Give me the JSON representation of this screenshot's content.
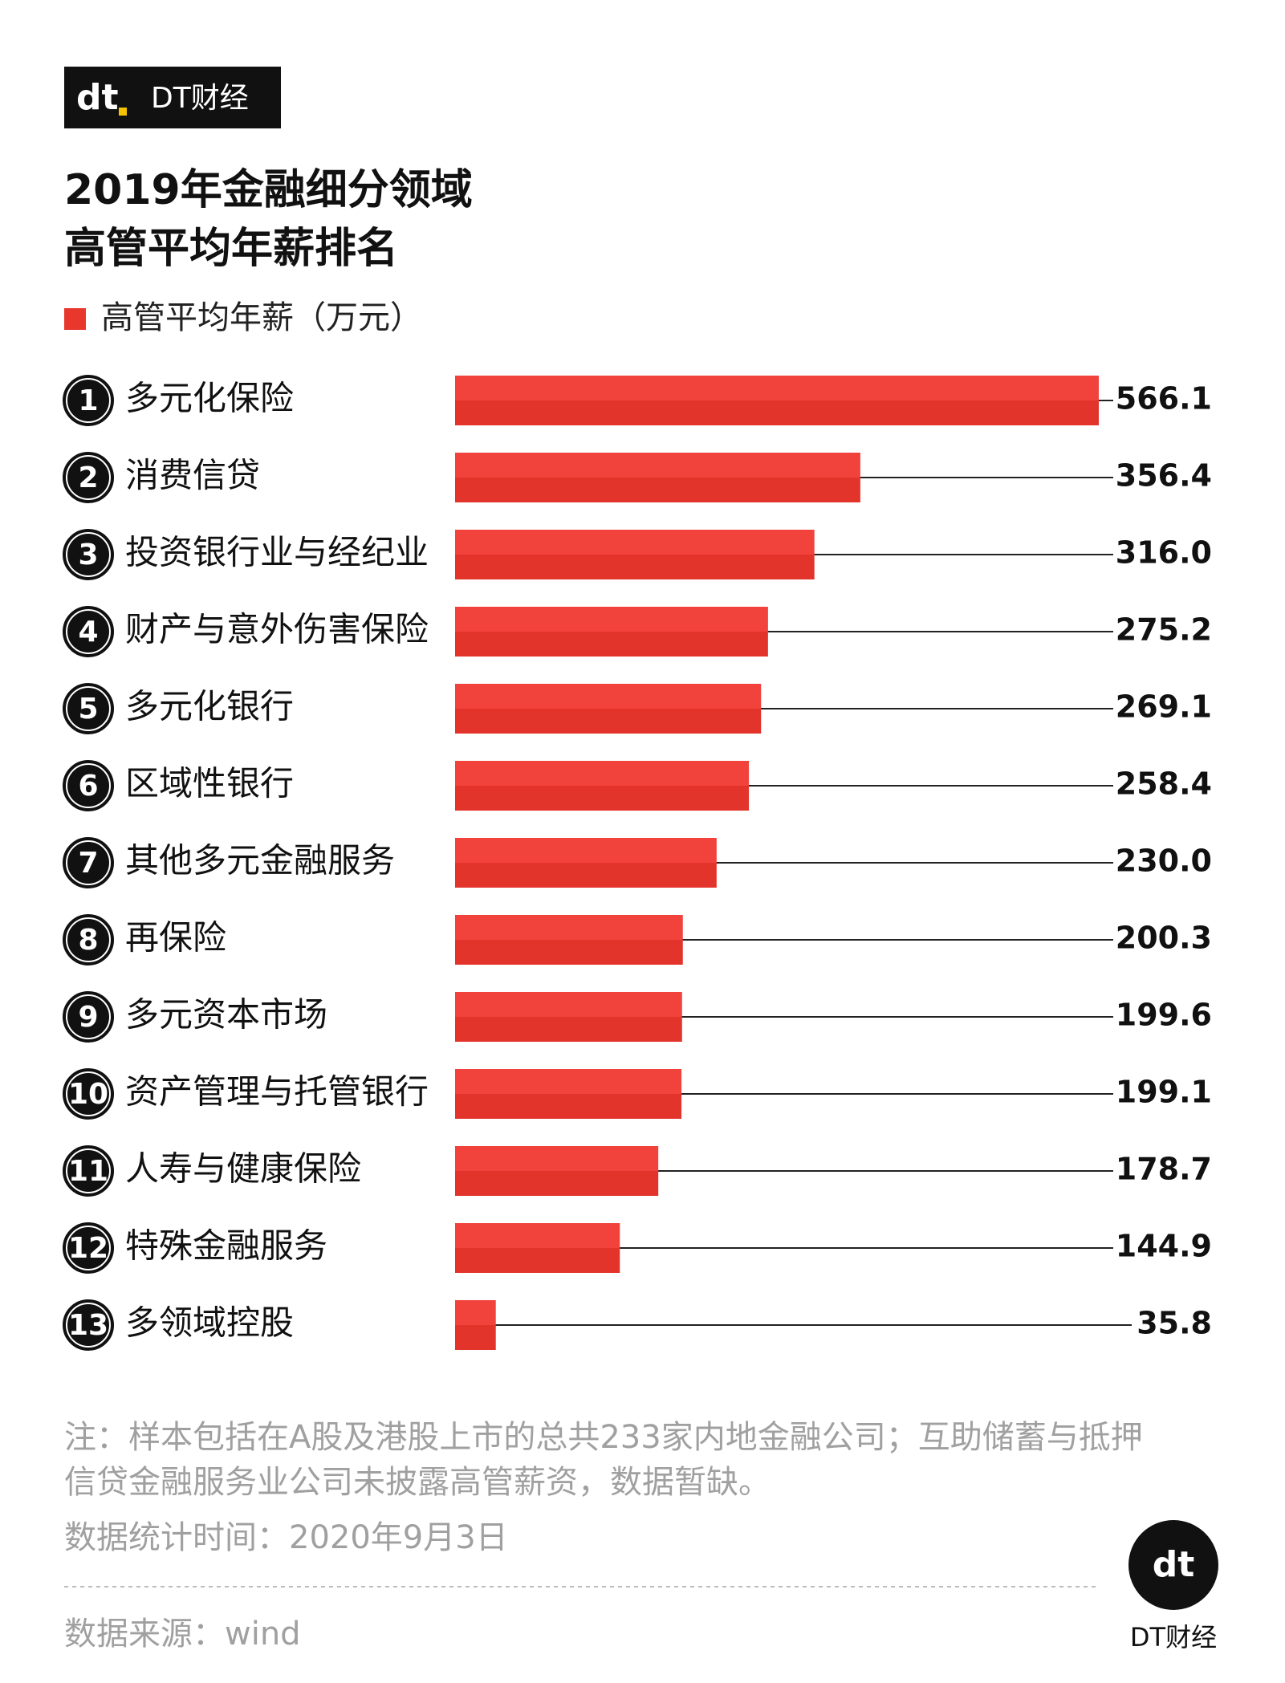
{
  "brand": "DT财经",
  "chart_data": {
    "type": "bar",
    "orientation": "horizontal",
    "title": [
      "2019年金融细分领域",
      "高管平均年薪排名"
    ],
    "ranks": [
      "1",
      "2",
      "3",
      "4",
      "5",
      "6",
      "7",
      "8",
      "9",
      "10",
      "11",
      "12",
      "13"
    ],
    "categories": [
      "多元化保险",
      "消费信贷",
      "投资银行业与经纪业",
      "财产与意外伤害保险",
      "多元化银行",
      "区域性银行",
      "其他多元金融服务",
      "再保险",
      "多元资本市场",
      "资产管理与托管银行",
      "人寿与健康保险",
      "特殊金融服务",
      "多领域控股"
    ],
    "series": [
      {
        "name": "高管平均年薪（万元）",
        "color": "#e8372d",
        "values": [
          566.1,
          356.4,
          316.0,
          275.2,
          269.1,
          258.4,
          230.0,
          200.3,
          199.6,
          199.1,
          178.7,
          144.9,
          35.8
        ],
        "value_labels": [
          "566.1",
          "356.4",
          "316.0",
          "275.2",
          "269.1",
          "258.4",
          "230.0",
          "200.3",
          "199.6",
          "199.1",
          "178.7",
          "144.9",
          "35.8"
        ]
      }
    ]
  },
  "notes": [
    "注：样本包括在A股及港股上市的总共233家内地金融公司；互助储蓄与抵押",
    "信贷金融服务业公司未披露高管薪资，数据暂缺。"
  ],
  "date": "数据统计时间：2020年9月3日",
  "source": "数据来源：wind"
}
